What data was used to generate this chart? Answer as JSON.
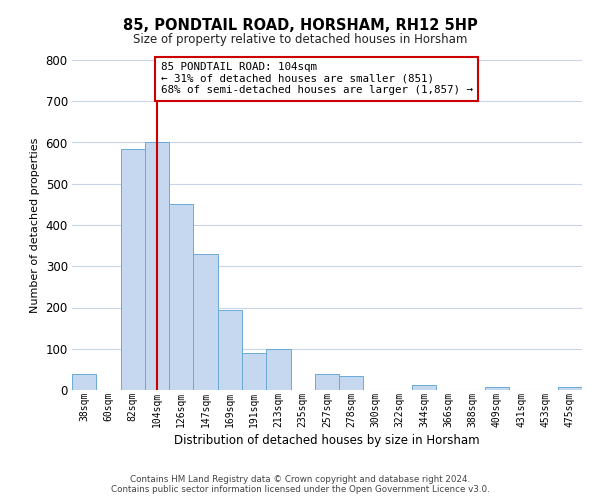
{
  "title": "85, PONDTAIL ROAD, HORSHAM, RH12 5HP",
  "subtitle": "Size of property relative to detached houses in Horsham",
  "xlabel": "Distribution of detached houses by size in Horsham",
  "ylabel": "Number of detached properties",
  "bar_labels": [
    "38sqm",
    "60sqm",
    "82sqm",
    "104sqm",
    "126sqm",
    "147sqm",
    "169sqm",
    "191sqm",
    "213sqm",
    "235sqm",
    "257sqm",
    "278sqm",
    "300sqm",
    "322sqm",
    "344sqm",
    "366sqm",
    "388sqm",
    "409sqm",
    "431sqm",
    "453sqm",
    "475sqm"
  ],
  "bar_values": [
    38,
    0,
    585,
    600,
    450,
    330,
    195,
    90,
    100,
    0,
    38,
    33,
    0,
    0,
    13,
    0,
    0,
    8,
    0,
    0,
    8
  ],
  "bar_color": "#c5d8f0",
  "bar_edge_color": "#6aaad4",
  "vline_x_index": 3,
  "vline_color": "#cc0000",
  "annotation_text_line1": "85 PONDTAIL ROAD: 104sqm",
  "annotation_text_line2": "← 31% of detached houses are smaller (851)",
  "annotation_text_line3": "68% of semi-detached houses are larger (1,857) →",
  "annotation_box_color": "#ffffff",
  "annotation_box_edge_color": "#cc0000",
  "ylim": [
    0,
    800
  ],
  "yticks": [
    0,
    100,
    200,
    300,
    400,
    500,
    600,
    700,
    800
  ],
  "footer_line1": "Contains HM Land Registry data © Crown copyright and database right 2024.",
  "footer_line2": "Contains public sector information licensed under the Open Government Licence v3.0.",
  "bg_color": "#ffffff",
  "grid_color": "#c8d4e8",
  "title_fontsize": 10.5,
  "subtitle_fontsize": 8.5
}
